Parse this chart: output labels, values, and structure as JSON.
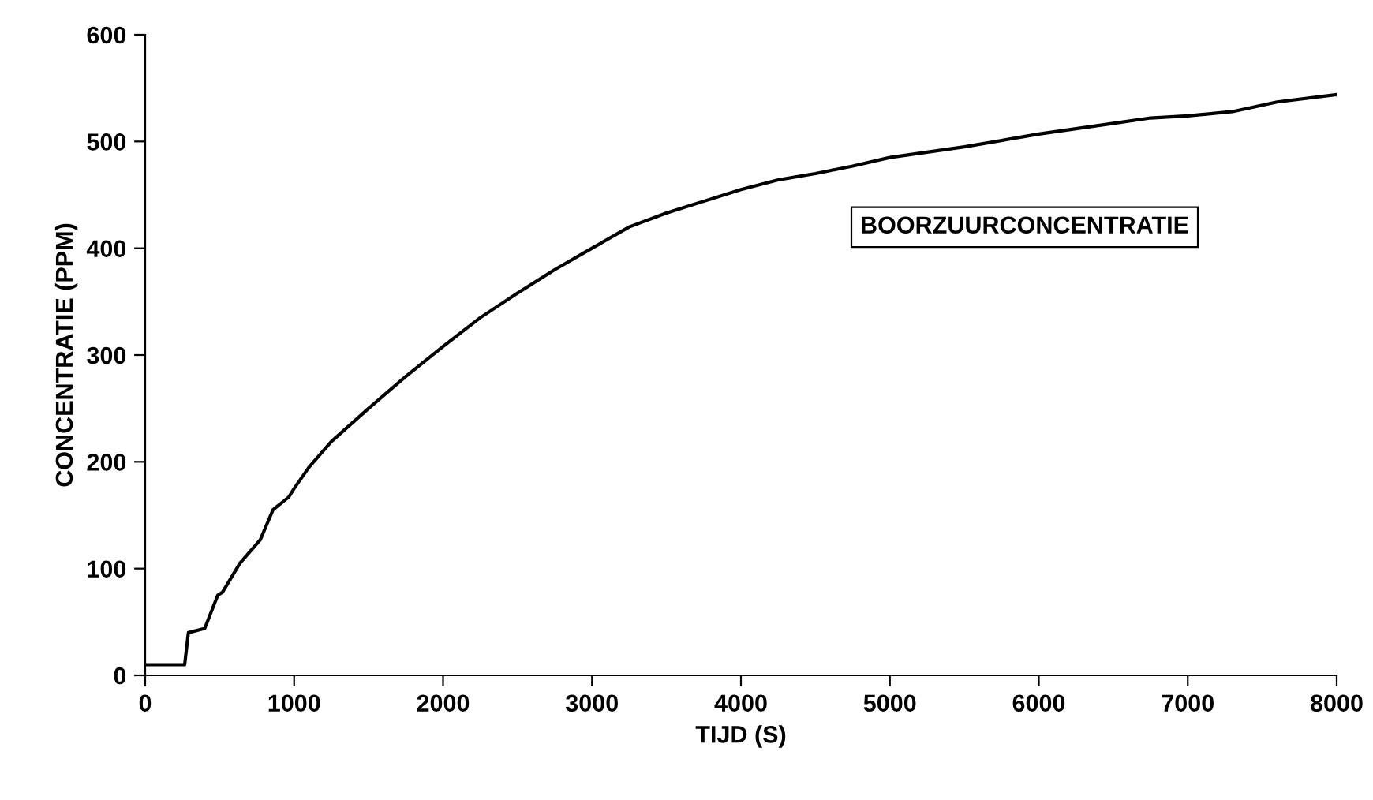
{
  "chart_data": {
    "type": "line",
    "xlabel": "TIJD (S)",
    "ylabel": "CONCENTRATIE (PPM)",
    "annotations": [
      "BOORZUURCONCENTRATIE"
    ],
    "series": [
      {
        "color": "#000000",
        "x": [
          0,
          265,
          290,
          400,
          487,
          520,
          636,
          773,
          858,
          964,
          1000,
          1100,
          1250,
          1500,
          1750,
          2000,
          2250,
          2500,
          2750,
          3000,
          3250,
          3500,
          3750,
          4000,
          4250,
          4500,
          4750,
          5000,
          5500,
          6000,
          6500,
          6750,
          7000,
          7300,
          7600,
          8000
        ],
        "values": [
          10,
          10,
          40,
          44,
          75,
          78,
          105,
          127,
          155,
          167,
          175,
          195,
          219,
          250,
          280,
          308,
          335,
          358,
          380,
          400,
          420,
          433,
          444,
          455,
          464,
          470,
          477,
          485,
          495,
          507,
          517,
          522,
          524,
          528,
          537,
          544
        ]
      }
    ],
    "xlim": [
      0,
      8000
    ],
    "xticks": [
      0,
      1000,
      2000,
      3000,
      4000,
      5000,
      6000,
      7000,
      8000
    ],
    "ylim": [
      0,
      600
    ],
    "yticks": [
      0,
      100,
      200,
      300,
      400,
      500,
      600
    ],
    "grid": false,
    "legend": false
  }
}
